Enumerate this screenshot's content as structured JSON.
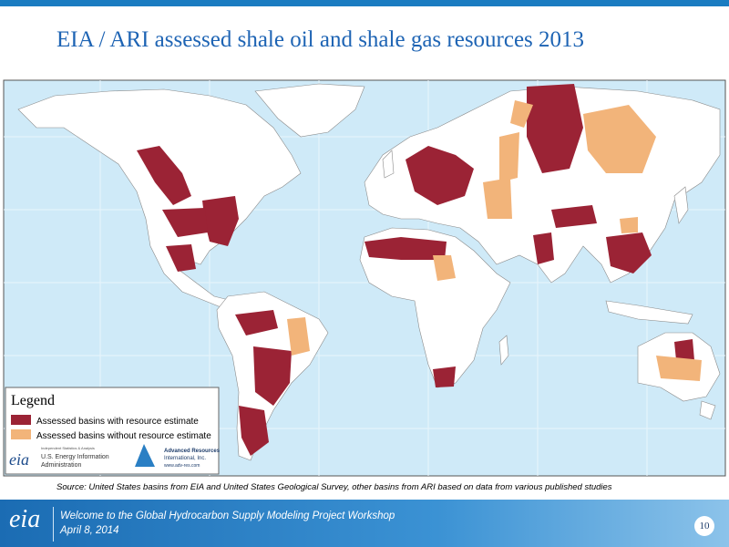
{
  "title": "EIA / ARI assessed shale oil and shale gas resources 2013",
  "legend": {
    "title": "Legend",
    "items": [
      {
        "label": "Assessed basins with resource estimate",
        "color": "#9b2335"
      },
      {
        "label": "Assessed basins without resource estimate",
        "color": "#f2b47a"
      }
    ]
  },
  "logos": {
    "eia_mark": "eia",
    "eia_lines": [
      "Independent Statistics & Analysis",
      "U.S. Energy Information",
      "Administration"
    ],
    "ari_lines": [
      "Advanced Resources",
      "International, Inc.",
      "www.adv-res.com"
    ]
  },
  "source": "Source: United States basins from EIA and United States Geological Survey, other basins from ARI based on data from various published studies",
  "footer": {
    "logo": "eia",
    "lines": [
      "Welcome to the Global Hydrocarbon Supply Modeling Project Workshop",
      "April 8, 2014"
    ],
    "page": "10"
  }
}
